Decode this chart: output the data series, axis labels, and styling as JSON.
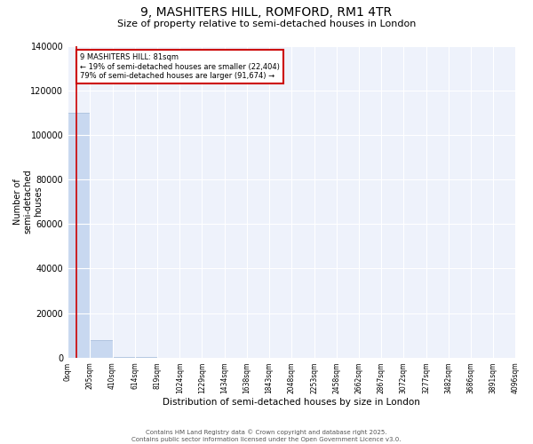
{
  "title": "9, MASHITERS HILL, ROMFORD, RM1 4TR",
  "subtitle": "Size of property relative to semi-detached houses in London",
  "xlabel": "Distribution of semi-detached houses by size in London",
  "ylabel": "Number of\nsemi-detached\nhouses",
  "property_size": 81,
  "property_label": "9 MASHITERS HILL: 81sqm",
  "pct_smaller": 19,
  "pct_larger": 79,
  "num_smaller": 22404,
  "num_larger": 91674,
  "bin_edges": [
    0,
    205,
    410,
    614,
    819,
    1024,
    1229,
    1434,
    1638,
    1843,
    2048,
    2253,
    2458,
    2662,
    2867,
    3072,
    3277,
    3482,
    3686,
    3891,
    4096
  ],
  "bin_counts": [
    110000,
    8000,
    300,
    100,
    50,
    30,
    20,
    15,
    10,
    8,
    6,
    5,
    4,
    3,
    2,
    2,
    1,
    1,
    1,
    1
  ],
  "bar_color": "#c8d8f0",
  "bar_edge_color": "#a0b8d8",
  "vline_color": "#cc0000",
  "vline_x": 81,
  "annotation_box_color": "#cc0000",
  "background_color": "#eef2fb",
  "ylim": [
    0,
    140000
  ],
  "yticks": [
    0,
    20000,
    40000,
    60000,
    80000,
    100000,
    120000,
    140000
  ],
  "footer": "Contains HM Land Registry data © Crown copyright and database right 2025.\nContains public sector information licensed under the Open Government Licence v3.0.",
  "tick_labels": [
    "0sqm",
    "205sqm",
    "410sqm",
    "614sqm",
    "819sqm",
    "1024sqm",
    "1229sqm",
    "1434sqm",
    "1638sqm",
    "1843sqm",
    "2048sqm",
    "2253sqm",
    "2458sqm",
    "2662sqm",
    "2867sqm",
    "3072sqm",
    "3277sqm",
    "3482sqm",
    "3686sqm",
    "3891sqm",
    "4096sqm"
  ]
}
